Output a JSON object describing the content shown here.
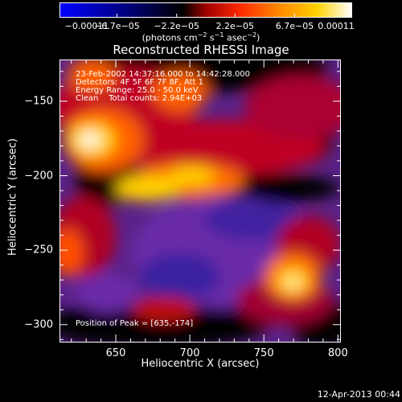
{
  "chart_data": {
    "type": "heatmap",
    "title": "Reconstructed RHESSI Image",
    "xlabel": "Heliocentric X (arcsec)",
    "ylabel": "Heliocentric Y (arcsec)",
    "xlim": [
      612,
      802
    ],
    "ylim": [
      -312,
      -122
    ],
    "x_ticks": [
      650,
      700,
      750,
      800
    ],
    "y_ticks": [
      -150,
      -200,
      -250,
      -300
    ],
    "x_tick_labels": [
      "650",
      "700",
      "750",
      "800"
    ],
    "y_tick_labels": [
      "−150",
      "−200",
      "−250",
      "−300"
    ],
    "colorbar": {
      "tick_labels": [
        "−0.00011",
        "−6.7e−05",
        "−2.2e−05",
        "2.2e−05",
        "6.7e−05",
        "0.00011"
      ],
      "tick_values": [
        -0.00011,
        -6.7e-05,
        -2.2e-05,
        2.2e-05,
        6.7e-05,
        0.00011
      ],
      "range": [
        -0.00011,
        0.00011
      ],
      "units_text": "(photons cm",
      "units_exp1": "−2",
      "units_mid": " s",
      "units_exp2": "−1",
      "units_mid2": " asec",
      "units_exp3": "−2",
      "units_end": ")"
    },
    "annotations": {
      "time_range": "23-Feb-2002 14:37:16.000 to 14:42:28.000",
      "detectors": "Detectors: 4F 5F 6F 7F 8F, Att 1",
      "energy_range": "Energy Range: 25.0 - 50.0 keV",
      "clean_line": "Clean    Total counts: 2.94E+03",
      "peak": "Position of Peak = [635,-174]"
    },
    "peak_position": [
      635,
      -174
    ],
    "timestamp": "12-Apr-2013 00:44",
    "colors": {
      "colormap": [
        "#0000ff",
        "#000060",
        "#000000",
        "#400060",
        "#6b2a9a",
        "#7a2aa8",
        "#a0003a",
        "#dd1010",
        "#ff5500",
        "#ff9900",
        "#ffdd00",
        "#ffffff"
      ]
    }
  }
}
